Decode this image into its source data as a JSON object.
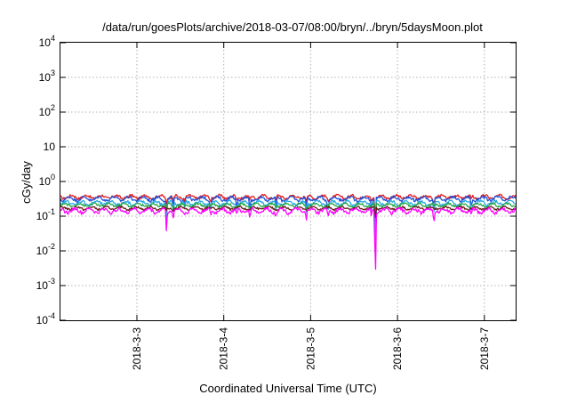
{
  "chart_data": {
    "type": "line",
    "title": "/data/run/goesPlots/archive/2018-03-07/08:00/bryn/../bryn/5daysMoon.plot",
    "xlabel": "Coordinated Universal Time (UTC)",
    "ylabel": "cGy/day",
    "yscale": "log",
    "ylim": [
      0.0001,
      10000
    ],
    "xlim": [
      2.12,
      7.36
    ],
    "x_unit": "day of March 2018",
    "grid": true,
    "y_ticks": [
      {
        "value": 0.0001,
        "base": "10",
        "exp": "-4"
      },
      {
        "value": 0.001,
        "base": "10",
        "exp": "-3"
      },
      {
        "value": 0.01,
        "base": "10",
        "exp": "-2"
      },
      {
        "value": 0.1,
        "base": "10",
        "exp": "-1"
      },
      {
        "value": 1,
        "base": "10",
        "exp": "0"
      },
      {
        "value": 10,
        "base": "10",
        "exp": ""
      },
      {
        "value": 100,
        "base": "10",
        "exp": "2"
      },
      {
        "value": 1000,
        "base": "10",
        "exp": "3"
      },
      {
        "value": 10000,
        "base": "10",
        "exp": "4"
      }
    ],
    "x_ticks": [
      {
        "value": 3,
        "label": "2018-3-3"
      },
      {
        "value": 4,
        "label": "2018-3-4"
      },
      {
        "value": 5,
        "label": "2018-3-5"
      },
      {
        "value": 6,
        "label": "2018-3-6"
      },
      {
        "value": 7,
        "label": "2018-3-7"
      }
    ],
    "series": [
      {
        "color": "#e41a1c",
        "base": 0.36,
        "amp": 0.04,
        "dip_scale": 0.25
      },
      {
        "color": "#1f4fd6",
        "base": 0.32,
        "amp": 0.04,
        "dip_scale": 0.6
      },
      {
        "color": "#2aa8e8",
        "base": 0.24,
        "amp": 0.03,
        "dip_scale": 0.6
      },
      {
        "color": "#22a845",
        "base": 0.21,
        "amp": 0.02,
        "dip_scale": 0.2
      },
      {
        "color": "#6a1b1b",
        "base": 0.17,
        "amp": 0.015,
        "dip_scale": 0.15
      },
      {
        "color": "#ff00ff",
        "base": 0.145,
        "amp": 0.02,
        "dip_scale": 1.0
      }
    ],
    "dips": [
      {
        "x": 3.34,
        "y": 0.035
      },
      {
        "x": 3.42,
        "y": 0.09
      },
      {
        "x": 3.55,
        "y": 0.11
      },
      {
        "x": 3.85,
        "y": 0.1
      },
      {
        "x": 4.15,
        "y": 0.1
      },
      {
        "x": 4.3,
        "y": 0.08
      },
      {
        "x": 4.6,
        "y": 0.1
      },
      {
        "x": 4.95,
        "y": 0.07
      },
      {
        "x": 5.2,
        "y": 0.09
      },
      {
        "x": 5.7,
        "y": 0.09
      },
      {
        "x": 5.745,
        "y": 0.001
      },
      {
        "x": 6.42,
        "y": 0.06
      },
      {
        "x": 6.85,
        "y": 0.1
      }
    ]
  }
}
